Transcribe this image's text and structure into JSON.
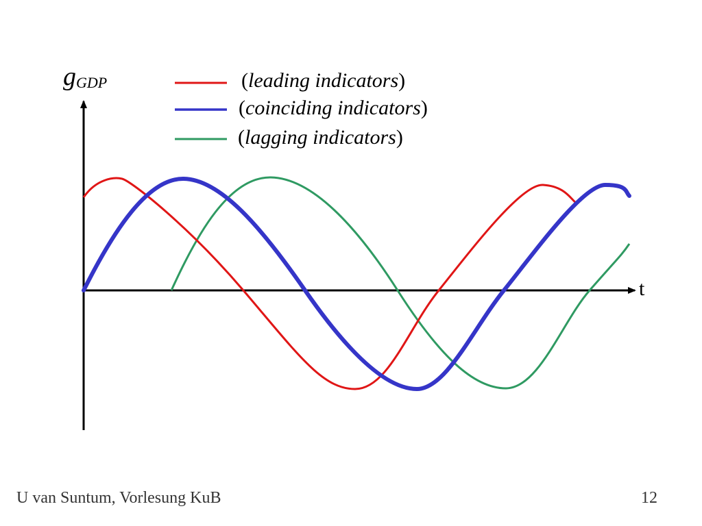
{
  "axes": {
    "y_label_main": "g",
    "y_label_sub": "GDP",
    "x_label": "t"
  },
  "legend": [
    {
      "text": "leading indicators",
      "color": "#e01616"
    },
    {
      "text": "coinciding indicators",
      "color": "#3535c8"
    },
    {
      "text": "lagging indicators",
      "color": "#2f9a62"
    }
  ],
  "footer": {
    "author": "U van Suntum, Vorlesung KuB",
    "page_number": "12"
  }
}
